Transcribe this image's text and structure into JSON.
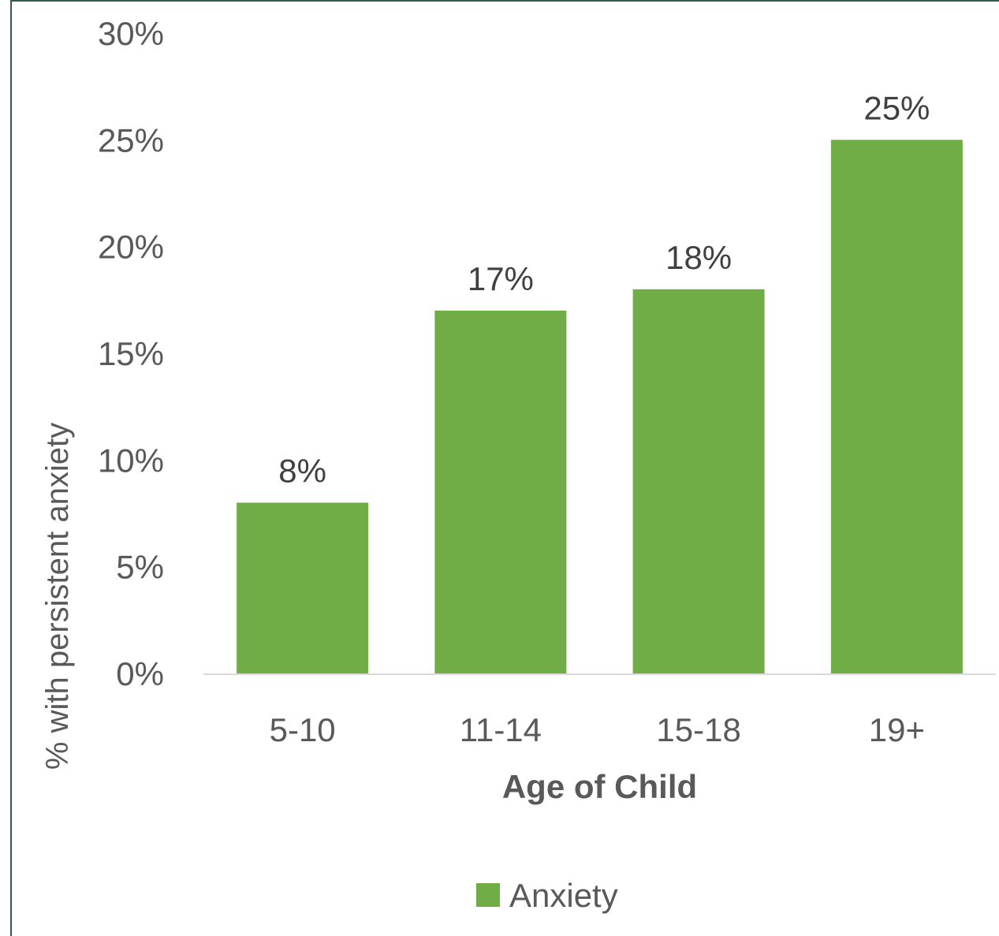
{
  "chart_data": {
    "type": "bar",
    "categories": [
      "5-10",
      "11-14",
      "15-18",
      "19+"
    ],
    "series": [
      {
        "name": "Anxiety",
        "values": [
          8,
          17,
          18,
          25
        ],
        "color": "#70ad47"
      }
    ],
    "data_labels": [
      "8%",
      "17%",
      "18%",
      "25%"
    ],
    "xlabel": "Age of Child",
    "ylabel": "% with persistent anxiety",
    "ylim": [
      0,
      30
    ],
    "yticks": [
      0,
      5,
      10,
      15,
      20,
      25,
      30
    ],
    "ytick_labels": [
      "0%",
      "5%",
      "10%",
      "15%",
      "20%",
      "25%",
      "30%"
    ],
    "grid": false,
    "legend": {
      "position": "bottom",
      "entries": [
        "Anxiety"
      ]
    },
    "axis_color": "#d9d9d9",
    "frame_color": "#2e5d4f"
  }
}
